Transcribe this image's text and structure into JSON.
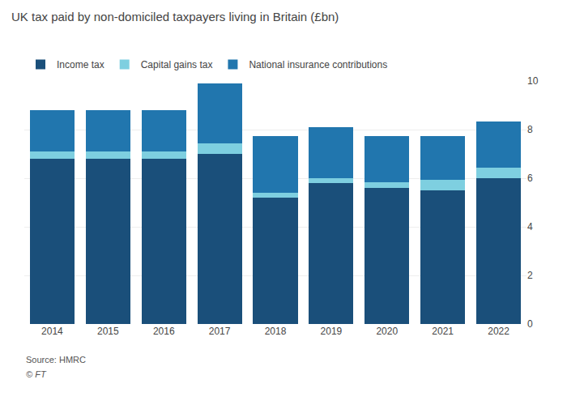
{
  "chart_data": {
    "type": "bar",
    "title": "UK tax paid by non-domiciled taxpayers living in Britain (£bn)",
    "categories": [
      "2014",
      "2015",
      "2016",
      "2017",
      "2018",
      "2019",
      "2020",
      "2021",
      "2022"
    ],
    "series": [
      {
        "name": "Income tax",
        "color": "#1a4f7a",
        "values": [
          6.8,
          6.8,
          6.8,
          7.0,
          5.2,
          5.8,
          5.6,
          5.5,
          6.0
        ]
      },
      {
        "name": "Capital gains tax",
        "color": "#7ecfe0",
        "values": [
          0.3,
          0.3,
          0.3,
          0.45,
          0.2,
          0.2,
          0.25,
          0.45,
          0.45
        ]
      },
      {
        "name": "National insurance contributions",
        "color": "#2176ae",
        "values": [
          1.7,
          1.7,
          1.7,
          2.45,
          2.35,
          2.1,
          1.9,
          1.8,
          1.9
        ]
      }
    ],
    "stacked": true,
    "ylim": [
      0,
      10
    ],
    "yticks": [
      0,
      2,
      4,
      6,
      8,
      10
    ],
    "grid": true,
    "legend": "top left",
    "annotations": [
      "Source: HMRC",
      "© FT"
    ]
  }
}
